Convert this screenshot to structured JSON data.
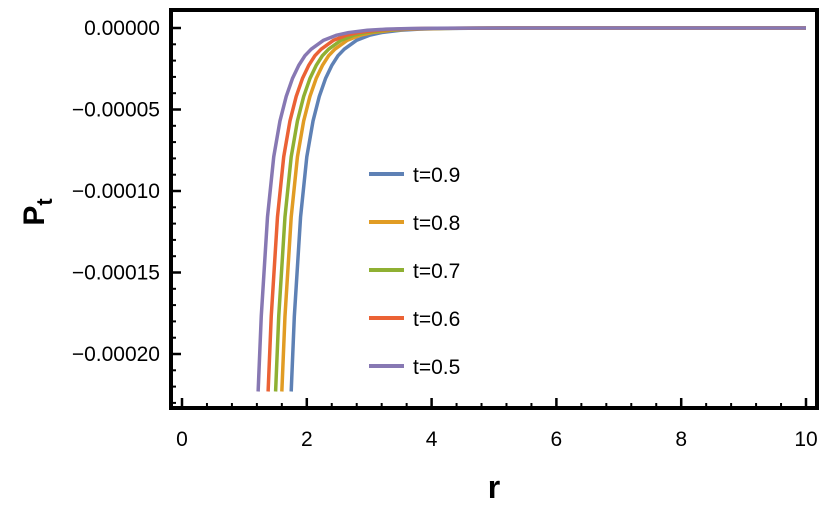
{
  "chart_data": {
    "type": "line",
    "title": "",
    "xlabel": "r",
    "ylabel": "P",
    "ylabel_subscript": "t",
    "xlim": [
      0,
      10
    ],
    "ylim": [
      -0.00023,
      1e-05
    ],
    "x_ticks": [
      {
        "value": 0,
        "label": "0"
      },
      {
        "value": 2,
        "label": "2"
      },
      {
        "value": 4,
        "label": "4"
      },
      {
        "value": 6,
        "label": "6"
      },
      {
        "value": 8,
        "label": "8"
      },
      {
        "value": 10,
        "label": "10"
      }
    ],
    "y_ticks": [
      {
        "value": 0,
        "label": "0.00000"
      },
      {
        "value": -5e-05,
        "label": "−0.00005"
      },
      {
        "value": -0.0001,
        "label": "−0.00010"
      },
      {
        "value": -0.00015,
        "label": "−0.00015"
      },
      {
        "value": -0.0002,
        "label": "−0.00020"
      }
    ],
    "grid": false,
    "legend_position": "center",
    "series": [
      {
        "name": "t=0.9",
        "color": "#5e81b5",
        "x": [
          1.75,
          1.8,
          1.9,
          2.0,
          2.1,
          2.2,
          2.3,
          2.4,
          2.5,
          2.6,
          2.8,
          3.0,
          3.2,
          3.5,
          3.8,
          4.2,
          4.6,
          5.0,
          6.0,
          8.0,
          10.0
        ],
        "y": [
          -0.000223,
          -0.000177,
          -0.000116,
          -7.9e-05,
          -5.7e-05,
          -4.2e-05,
          -3.1e-05,
          -2.3e-05,
          -1.7e-05,
          -1.3e-05,
          -7.5e-06,
          -4.5e-06,
          -2.8e-06,
          -1.4e-06,
          -7e-07,
          -3e-07,
          -1.2e-07,
          -5e-08,
          -1e-08,
          0,
          0
        ]
      },
      {
        "name": "t=0.8",
        "color": "#e19c24",
        "x": [
          1.6,
          1.65,
          1.75,
          1.85,
          1.95,
          2.05,
          2.15,
          2.25,
          2.35,
          2.45,
          2.65,
          2.85,
          3.05,
          3.35,
          3.65,
          4.05,
          4.45,
          4.85,
          5.85,
          7.85,
          10.0
        ],
        "y": [
          -0.000223,
          -0.000177,
          -0.000116,
          -7.9e-05,
          -5.7e-05,
          -4.2e-05,
          -3.1e-05,
          -2.3e-05,
          -1.7e-05,
          -1.3e-05,
          -7.5e-06,
          -4.5e-06,
          -2.8e-06,
          -1.4e-06,
          -7e-07,
          -3e-07,
          -1.2e-07,
          -5e-08,
          -1e-08,
          0,
          0
        ]
      },
      {
        "name": "t=0.7",
        "color": "#8fb032",
        "x": [
          1.5,
          1.55,
          1.65,
          1.75,
          1.85,
          1.95,
          2.05,
          2.15,
          2.25,
          2.35,
          2.55,
          2.75,
          2.95,
          3.25,
          3.55,
          3.95,
          4.35,
          4.75,
          5.75,
          7.75,
          10.0
        ],
        "y": [
          -0.000223,
          -0.000177,
          -0.000116,
          -7.9e-05,
          -5.7e-05,
          -4.2e-05,
          -3.1e-05,
          -2.3e-05,
          -1.7e-05,
          -1.3e-05,
          -7.5e-06,
          -4.5e-06,
          -2.8e-06,
          -1.4e-06,
          -7e-07,
          -3e-07,
          -1.2e-07,
          -5e-08,
          -1e-08,
          0,
          0
        ]
      },
      {
        "name": "t=0.6",
        "color": "#eb6235",
        "x": [
          1.38,
          1.43,
          1.53,
          1.63,
          1.73,
          1.83,
          1.93,
          2.03,
          2.13,
          2.23,
          2.43,
          2.63,
          2.83,
          3.13,
          3.43,
          3.83,
          4.23,
          4.63,
          5.63,
          7.63,
          10.0
        ],
        "y": [
          -0.000223,
          -0.000177,
          -0.000116,
          -7.9e-05,
          -5.7e-05,
          -4.2e-05,
          -3.1e-05,
          -2.3e-05,
          -1.7e-05,
          -1.3e-05,
          -7.5e-06,
          -4.5e-06,
          -2.8e-06,
          -1.4e-06,
          -7e-07,
          -3e-07,
          -1.2e-07,
          -5e-08,
          -1e-08,
          0,
          0
        ]
      },
      {
        "name": "t=0.5",
        "color": "#8778b3",
        "x": [
          1.22,
          1.27,
          1.37,
          1.47,
          1.57,
          1.67,
          1.77,
          1.87,
          1.97,
          2.07,
          2.27,
          2.47,
          2.67,
          2.97,
          3.27,
          3.67,
          4.07,
          4.47,
          5.47,
          7.47,
          10.0
        ],
        "y": [
          -0.000223,
          -0.000177,
          -0.000116,
          -7.9e-05,
          -5.7e-05,
          -4.2e-05,
          -3.1e-05,
          -2.3e-05,
          -1.7e-05,
          -1.3e-05,
          -7.5e-06,
          -4.5e-06,
          -2.8e-06,
          -1.4e-06,
          -7e-07,
          -3e-07,
          -1.2e-07,
          -5e-08,
          -1e-08,
          0,
          0
        ]
      }
    ]
  }
}
